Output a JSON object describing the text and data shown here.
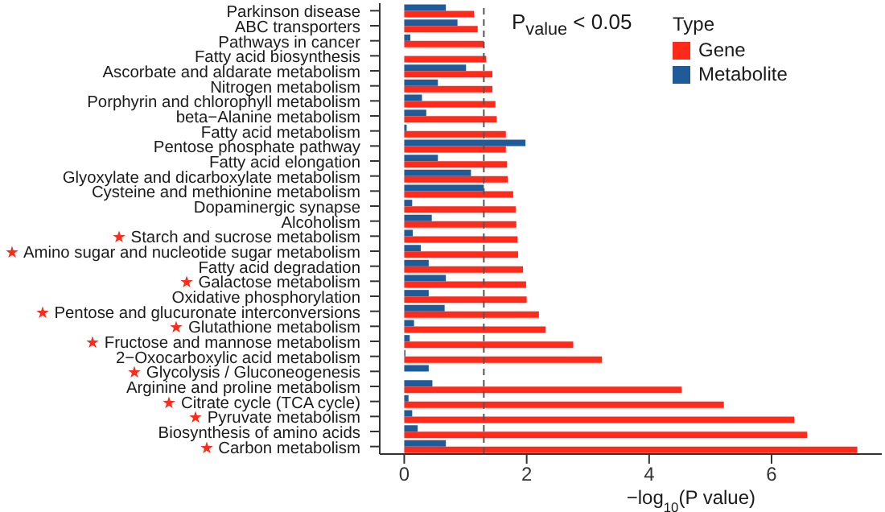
{
  "chart_data": {
    "type": "bar",
    "orientation": "horizontal",
    "categories": [
      "Parkinson disease",
      "ABC transporters",
      "Pathways in cancer",
      "Fatty acid biosynthesis",
      "Ascorbate and aldarate metabolism",
      "Nitrogen metabolism",
      "Porphyrin and chlorophyll metabolism",
      "beta−Alanine metabolism",
      "Fatty acid metabolism",
      "Pentose phosphate pathway",
      "Fatty acid elongation",
      "Glyoxylate and dicarboxylate metabolism",
      "Cysteine and methionine metabolism",
      "Dopaminergic synapse",
      "Alcoholism",
      "★ Starch and sucrose metabolism",
      "★ Amino sugar and nucleotide sugar metabolism",
      "Fatty acid degradation",
      "★ Galactose metabolism",
      "Oxidative phosphorylation",
      "★ Pentose and glucuronate interconversions",
      "★ Glutathione metabolism",
      "★ Fructose and mannose metabolism",
      "2−Oxocarboxylic acid metabolism",
      "★ Glycolysis / Gluconeogenesis",
      "Arginine and proline metabolism",
      "★ Citrate cycle (TCA cycle)",
      "★ Pyruvate metabolism",
      "Biosynthesis of amino acids",
      "★ Carbon metabolism"
    ],
    "series": [
      {
        "name": "Gene",
        "color": "#ff2a1a",
        "values": [
          1.14,
          1.2,
          1.3,
          1.34,
          1.44,
          1.44,
          1.49,
          1.51,
          1.66,
          1.66,
          1.68,
          1.69,
          1.78,
          1.82,
          1.83,
          1.85,
          1.86,
          1.94,
          1.99,
          2.0,
          2.2,
          2.31,
          2.76,
          3.23,
          null,
          4.53,
          5.22,
          6.37,
          6.58,
          7.4
        ]
      },
      {
        "name": "Metabolite",
        "color": "#1f5b99",
        "values": [
          0.68,
          0.87,
          0.1,
          null,
          1.01,
          0.55,
          0.29,
          0.36,
          0.04,
          1.98,
          0.55,
          1.09,
          1.3,
          0.13,
          0.45,
          0.14,
          0.27,
          0.4,
          0.68,
          0.4,
          0.66,
          0.16,
          0.09,
          0.02,
          0.4,
          0.46,
          0.07,
          0.13,
          0.22,
          0.68
        ]
      }
    ],
    "xlim": [
      -0.4,
      7.8
    ],
    "xticks": [
      0,
      2,
      4,
      6
    ],
    "xlabel": "−log$_{10}$(P value)",
    "legend_title": "Type",
    "legend": "top right",
    "ref_lines": [
      {
        "axis": "x",
        "value": 1.3,
        "color": "#555555",
        "line_style": "dashed"
      }
    ],
    "annotations": [
      "P$_{value}$ < 0.05"
    ]
  }
}
